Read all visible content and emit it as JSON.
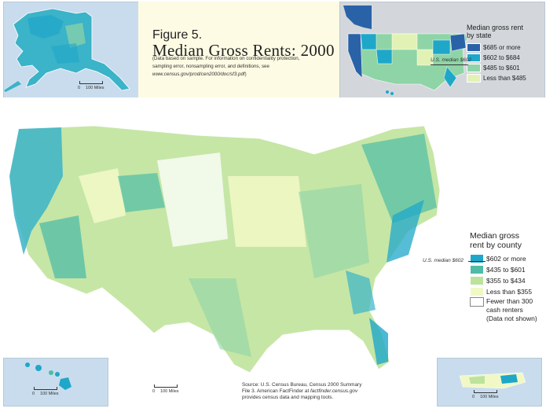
{
  "figure_label": "Figure 5.",
  "title": "Median Gross Rents: 2000",
  "note": {
    "line1": "(Data based on sample.  For information on confidentiality protection,",
    "line2": "sampling error, nonsampling error, and definitions, see",
    "url": "www.census.gov/prod/cen2000/doc/sf3.pdf",
    "close": ")"
  },
  "state_legend": {
    "header_line1": "Median gross rent",
    "header_line2": "by state",
    "items": [
      {
        "label": "$685 or more",
        "color": "#2a62a8"
      },
      {
        "label": "$602 to $684",
        "color": "#1fa7c9"
      },
      {
        "label": "$485 to $601",
        "color": "#8fd4a6"
      },
      {
        "label": "Less than $485",
        "color": "#e2f2b5"
      }
    ]
  },
  "state_median_label": "U.S. median $602",
  "county_legend": {
    "header_line1": "Median gross",
    "header_line2": "rent by county",
    "items": [
      {
        "label": "$602 or more",
        "color": "#1fa7c9"
      },
      {
        "label": "$435 to $601",
        "color": "#4fbca6"
      },
      {
        "label": "$355 to $434",
        "color": "#bde29c"
      },
      {
        "label": "Less than $355",
        "color": "#f1f8c6"
      }
    ],
    "no_data": {
      "line1": "Fewer than 300",
      "line2": "cash renters",
      "line3": "(Data not shown)",
      "color": "#ffffff"
    }
  },
  "county_median_label": "U.S. median $602",
  "source": {
    "line1": "Source: U.S. Census Bureau, Census 2000 Summary",
    "line2_prefix": "File 3.  American FactFinder at ",
    "line2_link": "factfinder.census.gov",
    "line3": "provides census data and mapping tools."
  },
  "scales": {
    "alaska": {
      "zero": "0",
      "distance": "100 Miles"
    },
    "main": {
      "zero": "0",
      "distance": "100 Miles"
    },
    "hawaii": {
      "zero": "0",
      "distance": "100 Miles"
    },
    "pr": {
      "zero": "0",
      "distance": "100 Miles"
    }
  }
}
